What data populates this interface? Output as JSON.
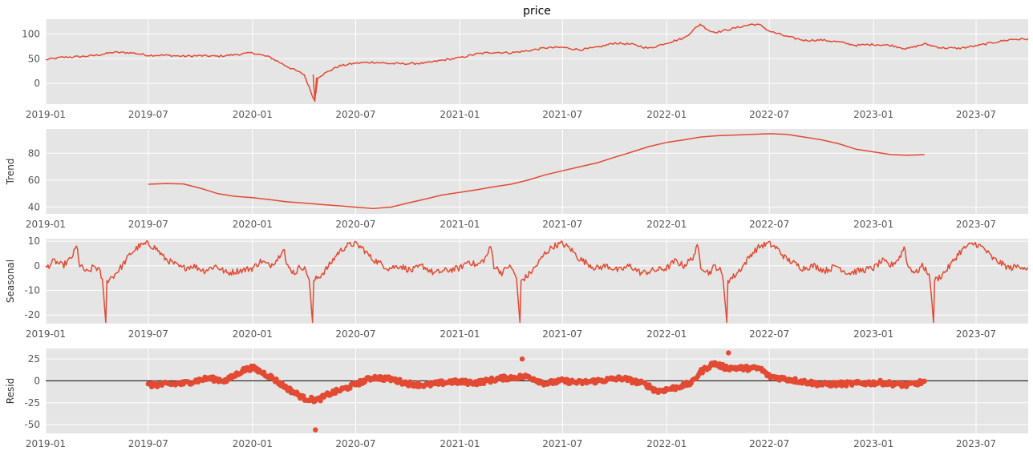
{
  "chart_data": [
    {
      "type": "line",
      "title": "price",
      "ylabel": "",
      "x_range": [
        "2019-01-01",
        "2023-10-01"
      ],
      "ylim": [
        -42,
        130
      ],
      "yticks": [
        0,
        50,
        100
      ],
      "grid": true,
      "color": "#E24A33",
      "x_tick_labels": [
        "2019-01",
        "2019-07",
        "2020-01",
        "2020-07",
        "2021-01",
        "2021-07",
        "2022-01",
        "2022-07",
        "2023-01",
        "2023-07"
      ],
      "series": [
        {
          "points": [
            [
              "2019-01-01",
              48
            ],
            [
              "2019-02-01",
              53
            ],
            [
              "2019-03-01",
              54
            ],
            [
              "2019-04-01",
              57
            ],
            [
              "2019-05-01",
              63
            ],
            [
              "2019-06-01",
              62
            ],
            [
              "2019-07-01",
              57
            ],
            [
              "2019-08-01",
              57
            ],
            [
              "2019-09-01",
              55
            ],
            [
              "2019-10-01",
              56
            ],
            [
              "2019-11-01",
              55
            ],
            [
              "2019-12-01",
              58
            ],
            [
              "2020-01-01",
              62
            ],
            [
              "2020-02-01",
              53
            ],
            [
              "2020-03-01",
              35
            ],
            [
              "2020-04-01",
              18
            ],
            [
              "2020-04-20",
              -37
            ],
            [
              "2020-04-25",
              12
            ],
            [
              "2020-05-15",
              25
            ],
            [
              "2020-06-01",
              35
            ],
            [
              "2020-07-01",
              41
            ],
            [
              "2020-08-01",
              43
            ],
            [
              "2020-09-01",
              40
            ],
            [
              "2020-10-01",
              40
            ],
            [
              "2020-11-01",
              41
            ],
            [
              "2020-12-01",
              47
            ],
            [
              "2021-01-01",
              52
            ],
            [
              "2021-02-01",
              60
            ],
            [
              "2021-03-01",
              63
            ],
            [
              "2021-04-01",
              62
            ],
            [
              "2021-05-01",
              66
            ],
            [
              "2021-06-01",
              72
            ],
            [
              "2021-07-01",
              73
            ],
            [
              "2021-08-01",
              68
            ],
            [
              "2021-09-01",
              73
            ],
            [
              "2021-10-01",
              82
            ],
            [
              "2021-11-01",
              79
            ],
            [
              "2021-12-01",
              71
            ],
            [
              "2022-01-01",
              82
            ],
            [
              "2022-02-01",
              92
            ],
            [
              "2022-03-01",
              120
            ],
            [
              "2022-03-20",
              105
            ],
            [
              "2022-04-01",
              104
            ],
            [
              "2022-05-01",
              112
            ],
            [
              "2022-06-01",
              120
            ],
            [
              "2022-06-15",
              118
            ],
            [
              "2022-07-01",
              106
            ],
            [
              "2022-08-01",
              95
            ],
            [
              "2022-09-01",
              87
            ],
            [
              "2022-10-01",
              88
            ],
            [
              "2022-11-01",
              84
            ],
            [
              "2022-12-01",
              77
            ],
            [
              "2023-01-01",
              79
            ],
            [
              "2023-02-01",
              77
            ],
            [
              "2023-03-01",
              70
            ],
            [
              "2023-04-01",
              80
            ],
            [
              "2023-05-01",
              72
            ],
            [
              "2023-06-01",
              71
            ],
            [
              "2023-07-01",
              76
            ],
            [
              "2023-08-01",
              83
            ],
            [
              "2023-09-01",
              89
            ],
            [
              "2023-10-01",
              90
            ]
          ]
        }
      ]
    },
    {
      "type": "line",
      "title": "",
      "ylabel": "Trend",
      "x_range": [
        "2019-01-01",
        "2023-10-01"
      ],
      "ylim": [
        35,
        98
      ],
      "yticks": [
        40,
        60,
        80
      ],
      "grid": true,
      "color": "#E24A33",
      "x_tick_labels": [
        "2019-01",
        "2019-07",
        "2020-01",
        "2020-07",
        "2021-01",
        "2021-07",
        "2022-01",
        "2022-07",
        "2023-01",
        "2023-07"
      ],
      "series": [
        {
          "points": [
            [
              "2019-07-01",
              57
            ],
            [
              "2019-08-01",
              57.5
            ],
            [
              "2019-09-01",
              57.2
            ],
            [
              "2019-10-01",
              54
            ],
            [
              "2019-11-01",
              50
            ],
            [
              "2019-12-01",
              48
            ],
            [
              "2020-01-01",
              47
            ],
            [
              "2020-02-01",
              45.5
            ],
            [
              "2020-03-01",
              44
            ],
            [
              "2020-04-01",
              43
            ],
            [
              "2020-05-01",
              42
            ],
            [
              "2020-06-01",
              41
            ],
            [
              "2020-07-01",
              40
            ],
            [
              "2020-08-01",
              39
            ],
            [
              "2020-09-01",
              40
            ],
            [
              "2020-10-01",
              43
            ],
            [
              "2020-11-01",
              46
            ],
            [
              "2020-12-01",
              49
            ],
            [
              "2021-01-01",
              51
            ],
            [
              "2021-02-01",
              53
            ],
            [
              "2021-03-01",
              55
            ],
            [
              "2021-04-01",
              57
            ],
            [
              "2021-05-01",
              60
            ],
            [
              "2021-06-01",
              64
            ],
            [
              "2021-07-01",
              67
            ],
            [
              "2021-08-01",
              70
            ],
            [
              "2021-09-01",
              73
            ],
            [
              "2021-10-01",
              77
            ],
            [
              "2021-11-01",
              81
            ],
            [
              "2021-12-01",
              85
            ],
            [
              "2022-01-01",
              88
            ],
            [
              "2022-02-01",
              90
            ],
            [
              "2022-03-01",
              92
            ],
            [
              "2022-04-01",
              93
            ],
            [
              "2022-05-01",
              93.5
            ],
            [
              "2022-06-01",
              94
            ],
            [
              "2022-07-01",
              94.5
            ],
            [
              "2022-08-01",
              94
            ],
            [
              "2022-09-01",
              92
            ],
            [
              "2022-10-01",
              90
            ],
            [
              "2022-11-01",
              87
            ],
            [
              "2022-12-01",
              83
            ],
            [
              "2023-01-01",
              81
            ],
            [
              "2023-02-01",
              79
            ],
            [
              "2023-03-01",
              78.5
            ],
            [
              "2023-04-01",
              79
            ]
          ]
        }
      ]
    },
    {
      "type": "line",
      "title": "",
      "ylabel": "Seasonal",
      "x_range": [
        "2019-01-01",
        "2023-10-01"
      ],
      "ylim": [
        -23.5,
        11
      ],
      "yticks": [
        -20,
        -10,
        0,
        10
      ],
      "grid": true,
      "color": "#E24A33",
      "x_tick_labels": [
        "2019-01",
        "2019-07",
        "2020-01",
        "2020-07",
        "2021-01",
        "2021-07",
        "2022-01",
        "2022-07",
        "2023-01",
        "2023-07"
      ],
      "series": [
        {
          "annual_pattern_day_value": [
            [
              0,
              -1
            ],
            [
              15,
              2
            ],
            [
              30,
              0
            ],
            [
              45,
              3
            ],
            [
              55,
              8
            ],
            [
              60,
              0
            ],
            [
              75,
              -3
            ],
            [
              85,
              0
            ],
            [
              95,
              -2
            ],
            [
              100,
              -6
            ],
            [
              106,
              -23
            ],
            [
              108,
              -6
            ],
            [
              120,
              -4
            ],
            [
              135,
              0
            ],
            [
              150,
              5
            ],
            [
              165,
              8
            ],
            [
              180,
              9
            ],
            [
              195,
              7
            ],
            [
              210,
              3
            ],
            [
              225,
              1
            ],
            [
              240,
              -1
            ],
            [
              260,
              0
            ],
            [
              280,
              -2
            ],
            [
              300,
              0
            ],
            [
              320,
              -3
            ],
            [
              340,
              -2
            ],
            [
              365,
              -1
            ]
          ]
        }
      ]
    },
    {
      "type": "scatter",
      "title": "",
      "ylabel": "Resid",
      "x_range": [
        "2019-01-01",
        "2023-10-01"
      ],
      "ylim": [
        -60,
        37
      ],
      "yticks": [
        -50,
        -25,
        0,
        25
      ],
      "grid": true,
      "zero_line": true,
      "color": "#E24A33",
      "x_tick_labels": [
        "2019-01",
        "2019-07",
        "2020-01",
        "2020-07",
        "2021-01",
        "2021-07",
        "2022-01",
        "2022-07",
        "2023-01",
        "2023-07"
      ],
      "series": [
        {
          "envelope": [
            [
              "2019-07-01",
              -5
            ],
            [
              "2019-09-01",
              -3
            ],
            [
              "2019-10-15",
              3
            ],
            [
              "2019-11-15",
              0
            ],
            [
              "2019-12-15",
              12
            ],
            [
              "2020-01-01",
              15
            ],
            [
              "2020-02-01",
              5
            ],
            [
              "2020-03-01",
              -8
            ],
            [
              "2020-04-01",
              -20
            ],
            [
              "2020-04-25",
              -22
            ],
            [
              "2020-05-15",
              -15
            ],
            [
              "2020-06-15",
              -8
            ],
            [
              "2020-08-01",
              4
            ],
            [
              "2020-09-01",
              2
            ],
            [
              "2020-10-01",
              -3
            ],
            [
              "2020-11-01",
              -5
            ],
            [
              "2020-12-15",
              -1
            ],
            [
              "2021-02-01",
              -2
            ],
            [
              "2021-03-15",
              3
            ],
            [
              "2021-05-01",
              5
            ],
            [
              "2021-06-01",
              -3
            ],
            [
              "2021-07-01",
              0
            ],
            [
              "2021-08-01",
              -2
            ],
            [
              "2021-09-15",
              1
            ],
            [
              "2021-10-15",
              3
            ],
            [
              "2021-11-25",
              -4
            ],
            [
              "2021-12-15",
              -12
            ],
            [
              "2022-01-15",
              -8
            ],
            [
              "2022-02-15",
              -2
            ],
            [
              "2022-03-01",
              10
            ],
            [
              "2022-03-25",
              20
            ],
            [
              "2022-04-15",
              15
            ],
            [
              "2022-06-15",
              14
            ],
            [
              "2022-07-01",
              5
            ],
            [
              "2022-08-01",
              2
            ],
            [
              "2022-10-01",
              -4
            ],
            [
              "2022-12-01",
              -3
            ],
            [
              "2023-01-15",
              -2
            ],
            [
              "2023-03-01",
              -5
            ],
            [
              "2023-04-01",
              -1
            ]
          ],
          "outliers": [
            [
              "2020-04-21",
              -56
            ],
            [
              "2021-04-21",
              25
            ],
            [
              "2022-04-20",
              32
            ]
          ]
        }
      ]
    }
  ]
}
